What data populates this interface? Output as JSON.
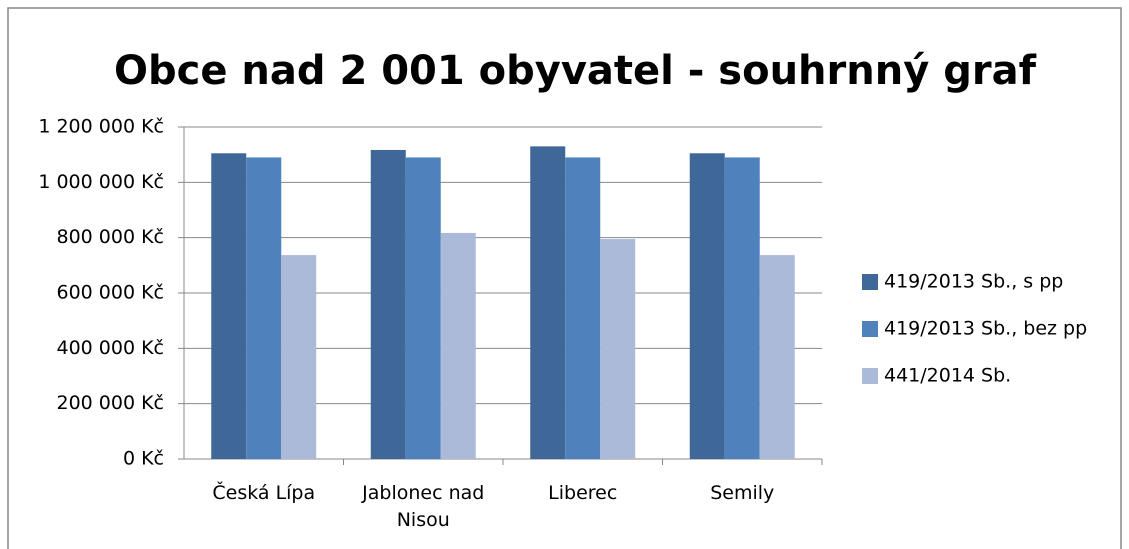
{
  "chart_data": {
    "type": "bar",
    "title": "Obce nad 2 001 obyvatel - souhrnný graf",
    "categories": [
      "Česká Lípa",
      "Jablonec nad Nisou",
      "Liberec",
      "Semily"
    ],
    "series": [
      {
        "name": "419/2013 Sb., s pp",
        "color": "#3f6797",
        "values": [
          1105000,
          1117000,
          1130000,
          1105000
        ]
      },
      {
        "name": "419/2013 Sb., bez pp",
        "color": "#4f81bd",
        "values": [
          1090000,
          1090000,
          1090000,
          1090000
        ]
      },
      {
        "name": "441/2014 Sb.",
        "color": "#aabad8",
        "values": [
          737000,
          817000,
          795000,
          737000
        ]
      }
    ],
    "ylim": [
      0,
      1200000
    ],
    "yticks": [
      {
        "value": 0,
        "label": "0 Kč"
      },
      {
        "value": 200000,
        "label": "200 000 Kč"
      },
      {
        "value": 400000,
        "label": "400 000 Kč"
      },
      {
        "value": 600000,
        "label": "600 000 Kč"
      },
      {
        "value": 800000,
        "label": "800 000 Kč"
      },
      {
        "value": 1000000,
        "label": "1 000 000 Kč"
      },
      {
        "value": 1200000,
        "label": "1 200 000 Kč"
      }
    ],
    "grid": true,
    "legend": "right"
  }
}
